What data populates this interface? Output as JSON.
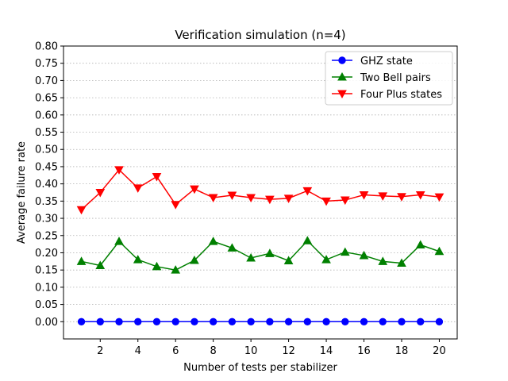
{
  "chart_data": {
    "type": "line",
    "title": "Verification simulation (n=4)",
    "xlabel": "Number of tests per stabilizer",
    "ylabel": "Average failure rate",
    "xlim": [
      0.05,
      20.95
    ],
    "ylim": [
      -0.05,
      0.8
    ],
    "xticks": [
      2,
      4,
      6,
      8,
      10,
      12,
      14,
      16,
      18,
      20
    ],
    "yticks": [
      0.0,
      0.05,
      0.1,
      0.15,
      0.2,
      0.25,
      0.3,
      0.35,
      0.4,
      0.45,
      0.5,
      0.55,
      0.6,
      0.65,
      0.7,
      0.75,
      0.8
    ],
    "grid": "y-dotted",
    "legend_position": "top-right",
    "x": [
      1,
      2,
      3,
      4,
      5,
      6,
      7,
      8,
      9,
      10,
      11,
      12,
      13,
      14,
      15,
      16,
      17,
      18,
      19,
      20
    ],
    "series": [
      {
        "name": "GHZ state",
        "color": "#0000ff",
        "marker": "circle",
        "values": [
          0,
          0,
          0,
          0,
          0,
          0,
          0,
          0,
          0,
          0,
          0,
          0,
          0,
          0,
          0,
          0,
          0,
          0,
          0,
          0
        ]
      },
      {
        "name": "Two Bell pairs",
        "color": "#008000",
        "marker": "triangle-up",
        "values": [
          0.175,
          0.163,
          0.233,
          0.18,
          0.16,
          0.15,
          0.178,
          0.233,
          0.214,
          0.185,
          0.198,
          0.177,
          0.235,
          0.18,
          0.202,
          0.192,
          0.175,
          0.17,
          0.223,
          0.204
        ]
      },
      {
        "name": "Four Plus states",
        "color": "#ff0000",
        "marker": "triangle-down",
        "values": [
          0.325,
          0.375,
          0.441,
          0.388,
          0.421,
          0.34,
          0.385,
          0.36,
          0.367,
          0.36,
          0.355,
          0.358,
          0.38,
          0.35,
          0.353,
          0.368,
          0.365,
          0.363,
          0.368,
          0.362
        ]
      }
    ]
  }
}
